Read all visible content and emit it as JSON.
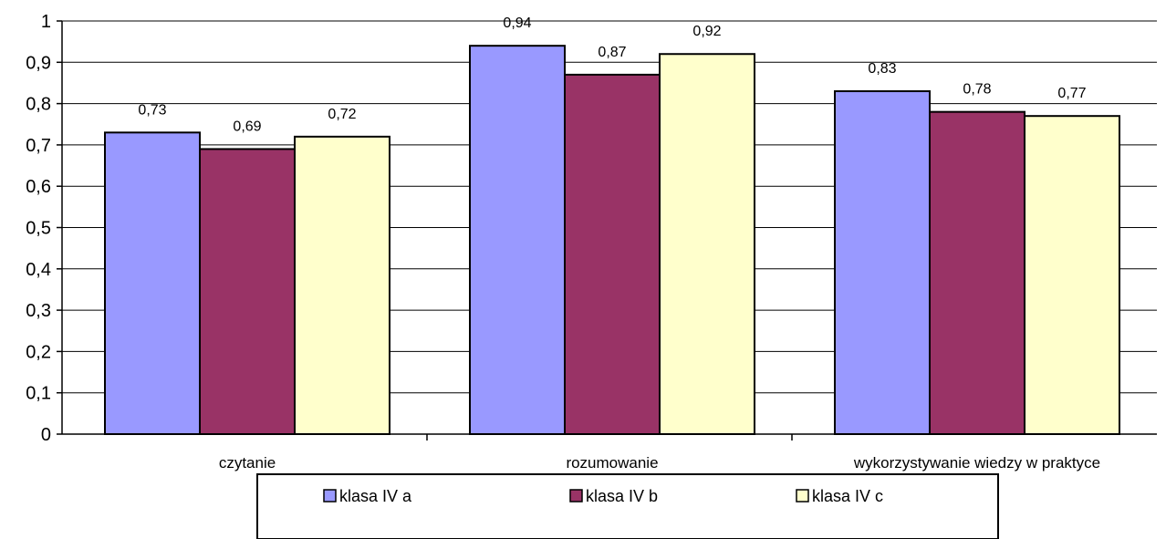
{
  "chart_data": {
    "type": "bar",
    "categories": [
      "czytanie",
      "rozumowanie",
      "wykorzystywanie wiedzy w praktyce"
    ],
    "series": [
      {
        "name": "klasa IV a",
        "values": [
          0.73,
          0.94,
          0.83
        ],
        "color": "#9999ff"
      },
      {
        "name": "klasa IV b",
        "values": [
          0.69,
          0.87,
          0.78
        ],
        "color": "#993366"
      },
      {
        "name": "klasa IV c",
        "values": [
          0.72,
          0.92,
          0.77
        ],
        "color": "#ffffcc"
      }
    ],
    "data_labels": [
      [
        "0,73",
        "0,94",
        "0,83"
      ],
      [
        "0,69",
        "0,87",
        "0,78"
      ],
      [
        "0,72",
        "0,92",
        "0,77"
      ]
    ],
    "yticks": [
      0,
      0.1,
      0.2,
      0.3,
      0.4,
      0.5,
      0.6,
      0.7,
      0.8,
      0.9,
      1
    ],
    "ytick_labels": [
      "0",
      "0,1",
      "0,2",
      "0,3",
      "0,4",
      "0,5",
      "0,6",
      "0,7",
      "0,8",
      "0,9",
      "1"
    ],
    "ylim": [
      0,
      1
    ],
    "grid": true,
    "legend_position": "bottom"
  }
}
